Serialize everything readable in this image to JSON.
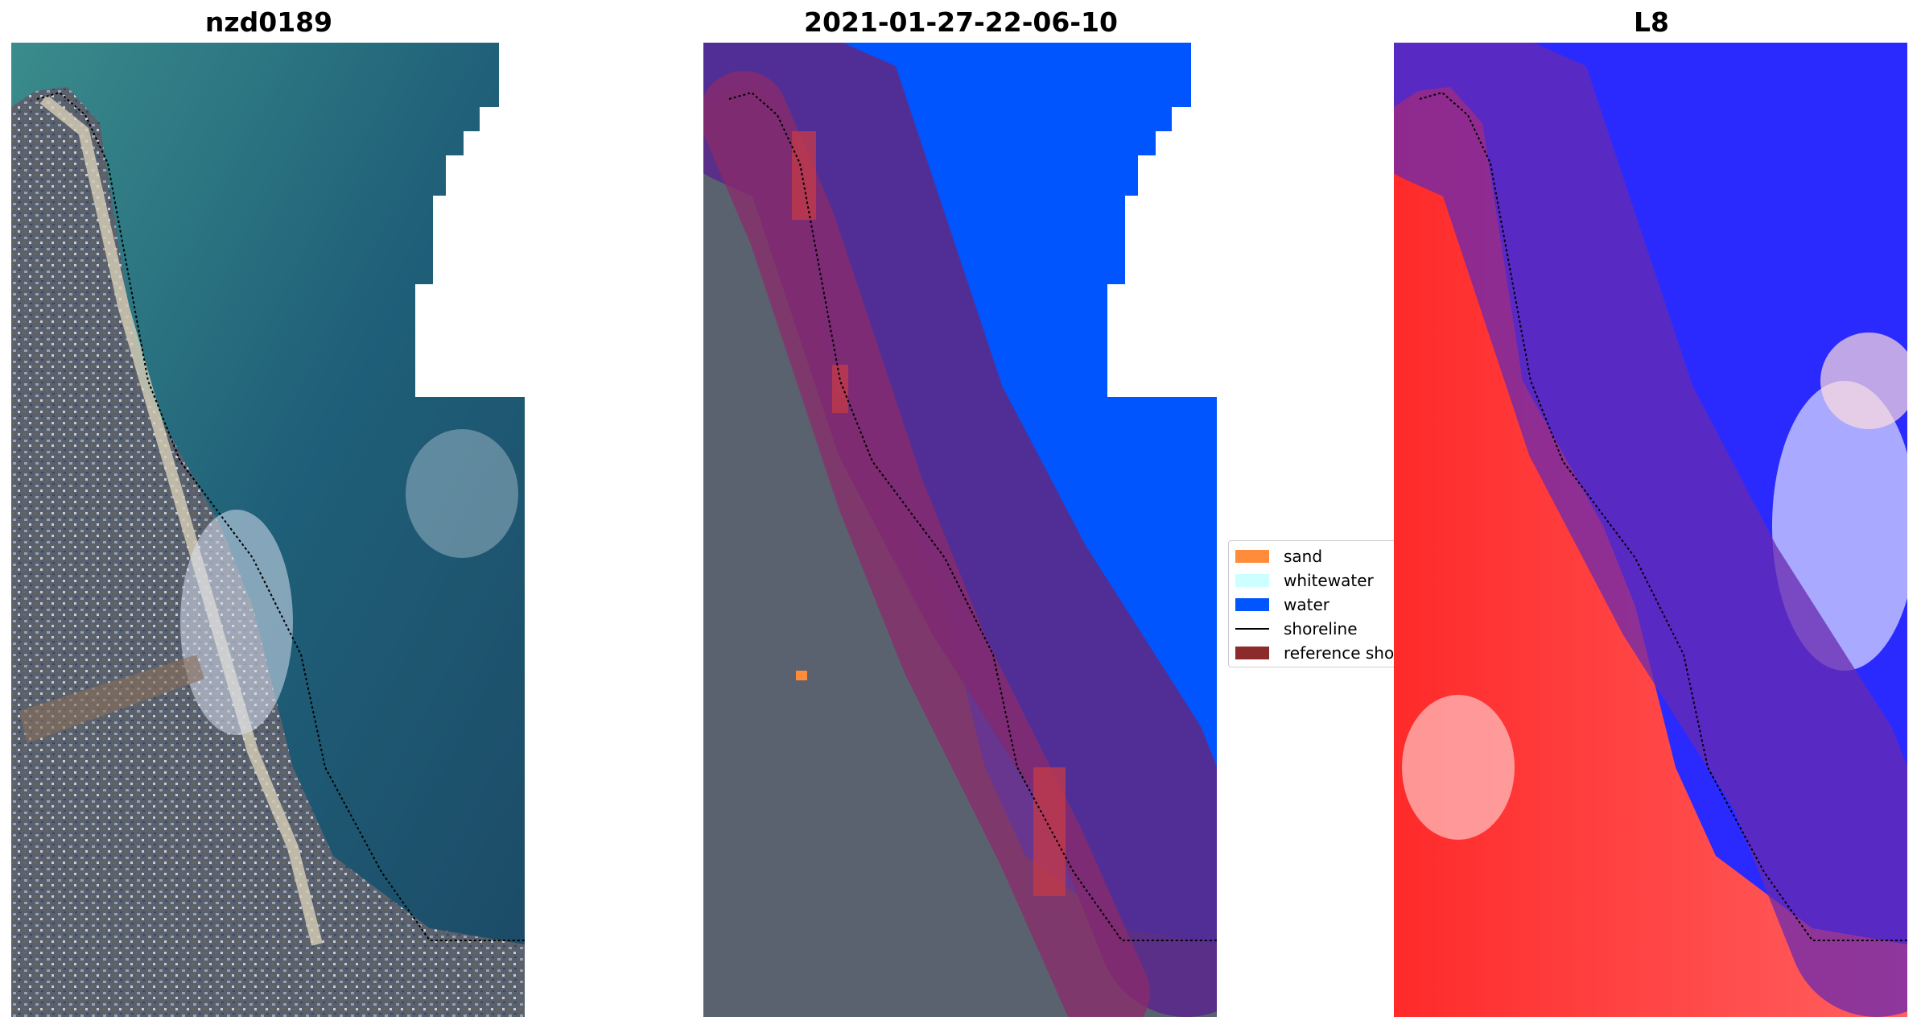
{
  "panels": [
    {
      "title": "nzd0189"
    },
    {
      "title": "2021-01-27-22-06-10"
    },
    {
      "title": "L8"
    }
  ],
  "legend": {
    "items": [
      {
        "label": "sand",
        "color": "#ff8c3a"
      },
      {
        "label": "whitewater",
        "color": "#ccffff"
      },
      {
        "label": "water",
        "color": "#0055ff"
      },
      {
        "label": "shoreline",
        "color": "#000000"
      },
      {
        "label": "reference shoreline buffer",
        "color": "#8b2b2b"
      }
    ]
  },
  "colors": {
    "sea": "#1f5f78",
    "land": "#58606f",
    "water_class": "#0055ff",
    "buffer": "#5a2a8a",
    "reference": "#8b2b2b",
    "index_land": "#ff2020",
    "index_water": "#2020ff"
  }
}
